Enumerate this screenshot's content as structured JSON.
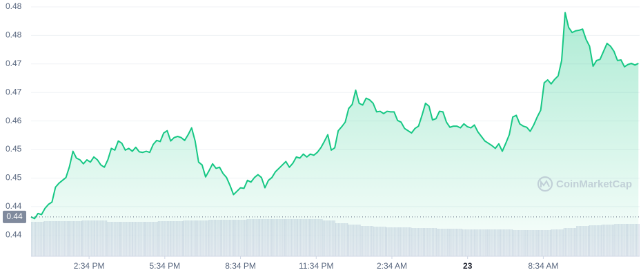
{
  "chart_data": {
    "type": "line",
    "color": "#16c784",
    "grid": true,
    "xlim": [
      0,
      1447
    ],
    "ylim": [
      0.4363,
      0.4812
    ],
    "yticks": [
      0.48,
      {
        "value": 0.475,
        "label": "0.48"
      },
      0.47,
      {
        "value": 0.465,
        "label": "0.47"
      },
      0.46,
      {
        "value": 0.455,
        "label": "0.45"
      },
      0.45,
      {
        "value": 0.445,
        "label": "0.44"
      },
      0.44
    ],
    "xticks": [
      {
        "value": 138,
        "label": "2:34 PM"
      },
      {
        "value": 318,
        "label": "5:34 PM"
      },
      {
        "value": 498,
        "label": "8:34 PM"
      },
      {
        "value": 678,
        "label": "11:34 PM"
      },
      {
        "value": 858,
        "label": "2:34 AM"
      },
      {
        "value": 1038,
        "label": "23"
      },
      {
        "value": 1218,
        "label": "8:34 AM"
      }
    ],
    "reference_line": {
      "value": 0.4432,
      "label": "0.44"
    },
    "watermark": "CoinMarketCap",
    "x": [
      0,
      8.3,
      16.6,
      24.9,
      33.2,
      41.5,
      49.8,
      58.1,
      66.4,
      74.7,
      83,
      91.3,
      99.6,
      107.9,
      116.2,
      124.5,
      132.8,
      141.1,
      149.4,
      157.7,
      166,
      174.3,
      182.6,
      190.9,
      199.2,
      207.5,
      215.8,
      224.1,
      232.4,
      240.7,
      249,
      257.3,
      265.6,
      273.9,
      282.2,
      290.5,
      298.8,
      307.1,
      315.4,
      323.7,
      332,
      340.3,
      348.6,
      356.9,
      365.2,
      373.5,
      381.8,
      390.1,
      398.4,
      406.7,
      415,
      423.3,
      431.6,
      439.9,
      448.2,
      456.5,
      464.8,
      473.1,
      481.4,
      489.7,
      498,
      506.3,
      514.6,
      522.9,
      531.2,
      539.5,
      547.8,
      556.1,
      564.4,
      572.7,
      581,
      589.3,
      597.6,
      605.9,
      614.2,
      622.5,
      630.8,
      639.1,
      647.4,
      655.7,
      664,
      672.3,
      680.6,
      688.9,
      697.2,
      705.5,
      713.8,
      722.1,
      730.4,
      738.7,
      747,
      755.3,
      763.6,
      771.9,
      780.2,
      788.5,
      796.8,
      805.1,
      813.4,
      821.7,
      830,
      838.3,
      846.6,
      854.9,
      863.2,
      871.5,
      879.8,
      888.1,
      896.4,
      904.7,
      913,
      921.3,
      929.6,
      937.9,
      946.2,
      954.5,
      962.8,
      971.1,
      979.4,
      987.7,
      996,
      1004.3,
      1012.6,
      1020.9,
      1029.2,
      1037.5,
      1045.8,
      1054.1,
      1062.4,
      1070.7,
      1079,
      1087.3,
      1095.6,
      1103.9,
      1112.2,
      1120.5,
      1128.8,
      1137.1,
      1145.4,
      1153.7,
      1162,
      1170.3,
      1178.6,
      1186.9,
      1195.2,
      1203.5,
      1211.8,
      1220.1,
      1228.4,
      1236.7,
      1245,
      1253.3,
      1261.6,
      1269.9,
      1278.2,
      1286.5,
      1294.8,
      1303.1,
      1311.4,
      1319.7,
      1328,
      1336.3,
      1344.6,
      1352.9,
      1361.2,
      1369.5,
      1377.8,
      1386.1,
      1394.4,
      1402.7,
      1411,
      1419.3,
      1427.6,
      1435.9,
      1444.2
    ],
    "values": [
      0.4432,
      0.4429,
      0.4438,
      0.4436,
      0.4447,
      0.4454,
      0.4458,
      0.4484,
      0.4491,
      0.4496,
      0.4501,
      0.452,
      0.4547,
      0.4535,
      0.4532,
      0.4525,
      0.4532,
      0.4528,
      0.4537,
      0.4532,
      0.4523,
      0.4519,
      0.4532,
      0.4552,
      0.4549,
      0.4565,
      0.4561,
      0.4549,
      0.4552,
      0.4547,
      0.4554,
      0.4546,
      0.4545,
      0.4547,
      0.4545,
      0.4559,
      0.4566,
      0.4564,
      0.4579,
      0.4583,
      0.4565,
      0.4571,
      0.4573,
      0.4571,
      0.4566,
      0.4576,
      0.4588,
      0.4565,
      0.4528,
      0.4523,
      0.4502,
      0.4513,
      0.4525,
      0.4517,
      0.4519,
      0.4508,
      0.4501,
      0.4487,
      0.4471,
      0.4477,
      0.4483,
      0.4482,
      0.4496,
      0.4493,
      0.4501,
      0.4506,
      0.4501,
      0.4483,
      0.4496,
      0.4501,
      0.4511,
      0.4517,
      0.4523,
      0.4529,
      0.4519,
      0.4526,
      0.4537,
      0.4535,
      0.4542,
      0.4537,
      0.4542,
      0.454,
      0.4545,
      0.4553,
      0.4564,
      0.4576,
      0.4549,
      0.4553,
      0.4583,
      0.459,
      0.4598,
      0.4622,
      0.4629,
      0.4654,
      0.4631,
      0.4628,
      0.464,
      0.4637,
      0.4631,
      0.4616,
      0.4617,
      0.4613,
      0.4617,
      0.4616,
      0.4616,
      0.4601,
      0.4598,
      0.4587,
      0.4583,
      0.4579,
      0.4587,
      0.4591,
      0.461,
      0.4631,
      0.4626,
      0.4602,
      0.4604,
      0.4617,
      0.4616,
      0.4598,
      0.4589,
      0.4591,
      0.4591,
      0.4588,
      0.4595,
      0.459,
      0.4588,
      0.4593,
      0.4581,
      0.4573,
      0.4565,
      0.4561,
      0.4557,
      0.4552,
      0.456,
      0.4547,
      0.4561,
      0.4576,
      0.4607,
      0.461,
      0.4595,
      0.4591,
      0.4589,
      0.4582,
      0.4593,
      0.4607,
      0.4619,
      0.4667,
      0.4672,
      0.4665,
      0.4673,
      0.4679,
      0.4706,
      0.479,
      0.4764,
      0.4755,
      0.4758,
      0.4759,
      0.4761,
      0.4743,
      0.4731,
      0.4696,
      0.4706,
      0.4708,
      0.4722,
      0.4736,
      0.4731,
      0.4722,
      0.4706,
      0.4707,
      0.4695,
      0.4699,
      0.4701,
      0.4698,
      0.4701
    ],
    "volume": {
      "color": "#cfd6e4",
      "values": [
        50,
        51,
        51,
        51,
        52,
        52,
        50,
        50,
        50,
        50,
        51,
        51,
        52,
        52,
        53,
        53,
        53,
        54,
        54,
        54,
        54,
        54,
        54,
        52,
        48,
        46,
        44,
        43,
        42,
        42,
        41,
        41,
        40,
        40,
        39,
        39,
        39,
        39,
        38,
        38,
        38,
        39,
        41,
        44,
        45,
        46,
        47,
        47
      ]
    }
  }
}
